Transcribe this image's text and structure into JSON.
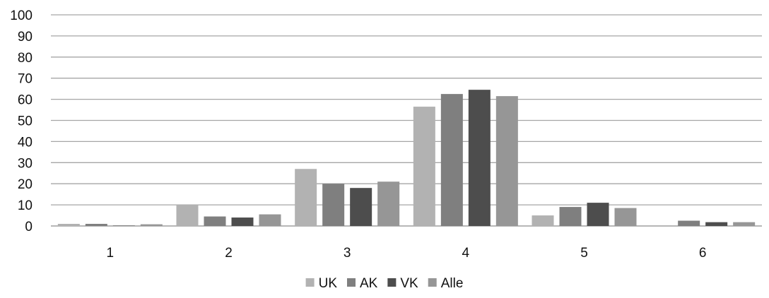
{
  "chart_data": {
    "type": "bar",
    "categories": [
      "1",
      "2",
      "3",
      "4",
      "5",
      "6"
    ],
    "series": [
      {
        "name": "UK",
        "color": "#b2b2b2",
        "values": [
          1.0,
          10.0,
          27.0,
          56.5,
          5.0,
          0.3
        ]
      },
      {
        "name": "AK",
        "color": "#7f7f7f",
        "values": [
          1.0,
          4.5,
          20.0,
          62.5,
          9.0,
          2.5
        ]
      },
      {
        "name": "VK",
        "color": "#4d4d4d",
        "values": [
          0.2,
          4.0,
          18.0,
          64.5,
          11.0,
          1.8
        ]
      },
      {
        "name": "Alle",
        "color": "#969696",
        "values": [
          0.8,
          5.5,
          21.0,
          61.5,
          8.5,
          1.8
        ]
      }
    ],
    "ylim": [
      0,
      100
    ],
    "yticks": [
      "0",
      "10",
      "20",
      "30",
      "40",
      "50",
      "60",
      "70",
      "80",
      "90",
      "100"
    ],
    "grid": true,
    "legend_position": "bottom",
    "title": "",
    "xlabel": "",
    "ylabel": ""
  },
  "colors": {
    "gridline": "#a6a6a6",
    "axis": "#8c8c8c"
  }
}
